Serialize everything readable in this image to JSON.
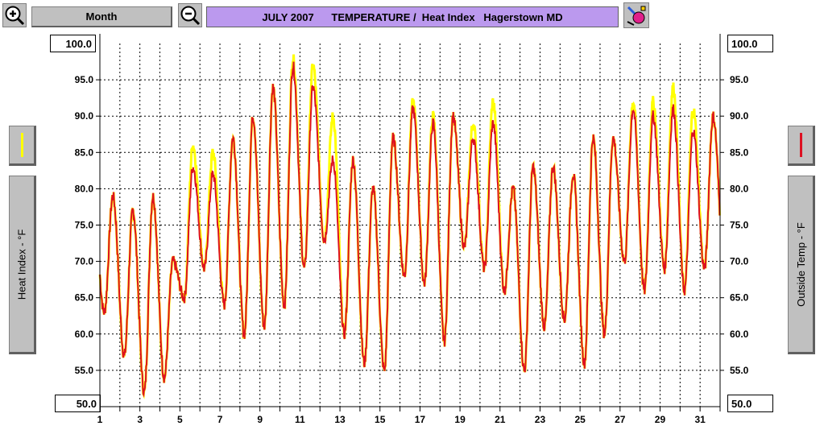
{
  "toolbar": {
    "range_label": "Month",
    "title": "JULY 2007      TEMPERATURE /  Heat Index   Hagerstown MD",
    "zoom_in_icon": "zoom-in-icon",
    "zoom_out_icon": "zoom-out-icon",
    "edit_icon": "paint-edit-icon"
  },
  "legend": {
    "left_color": "#ffff00",
    "right_color": "#dd1122",
    "left_label": "Heat Index - °F",
    "right_label": "Outside Temp - °F"
  },
  "axis": {
    "left_top": "100.0",
    "left_bottom": "50.0",
    "right_top": "100.0",
    "right_bottom": "50.0"
  },
  "chart_data": {
    "type": "line",
    "ylim": [
      50,
      100
    ],
    "xlim": [
      1,
      32
    ],
    "ylabel_left": "Heat Index - °F",
    "ylabel_right": "Outside Temp - °F",
    "y_ticks": [
      "100.0",
      "95.0",
      "90.0",
      "85.0",
      "80.0",
      "75.0",
      "70.0",
      "65.0",
      "60.0",
      "55.0",
      "50.0"
    ],
    "x_ticks": [
      "1",
      "3",
      "5",
      "7",
      "9",
      "11",
      "13",
      "15",
      "17",
      "19",
      "21",
      "23",
      "25",
      "27",
      "29",
      "31"
    ],
    "grid": true,
    "days": [
      1,
      2,
      3,
      4,
      5,
      6,
      7,
      8,
      9,
      10,
      11,
      12,
      13,
      14,
      15,
      16,
      17,
      18,
      19,
      20,
      21,
      22,
      23,
      24,
      25,
      26,
      27,
      28,
      29,
      30,
      31
    ],
    "temp_min": [
      63,
      57,
      52,
      54,
      65,
      69,
      64,
      60,
      61,
      64,
      69,
      73,
      60,
      56,
      55,
      68,
      67,
      59,
      72,
      69,
      66,
      55,
      61,
      62,
      56,
      60,
      70,
      66,
      69,
      66,
      69
    ],
    "temp_max": [
      79,
      77,
      79,
      70,
      83,
      82,
      87,
      90,
      94,
      97,
      94,
      84,
      84,
      80,
      87,
      91,
      89,
      90,
      87,
      89,
      80,
      83,
      83,
      82,
      87,
      87,
      91,
      90,
      91,
      88,
      90
    ],
    "heat_max": [
      78,
      76,
      78,
      70,
      86,
      85,
      87,
      90,
      93,
      98,
      97,
      90,
      84,
      80,
      87,
      92,
      90,
      90,
      89,
      92,
      79,
      82,
      82,
      82,
      87,
      87,
      92,
      92,
      94,
      91,
      90
    ],
    "series": [
      {
        "name": "Heat Index",
        "color": "#ffff00"
      },
      {
        "name": "Outside Temp",
        "color": "#dd1122"
      }
    ]
  }
}
